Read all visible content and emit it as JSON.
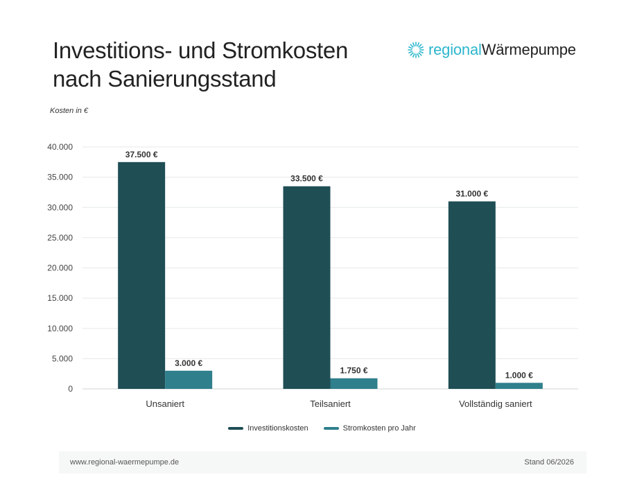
{
  "header": {
    "title_line1": "Investitions- und Stromkosten",
    "title_line2": "nach Sanierungsstand"
  },
  "logo": {
    "icon": "sun-burst-icon",
    "text_accent": "regional",
    "text_main": "Wärmepumpe",
    "accent_color": "#2cb6cd"
  },
  "footer": {
    "url": "www.regional-waermepumpe.de",
    "date": "Stand 06/2026"
  },
  "chart_data": {
    "type": "bar",
    "title": "Investitions- und Stromkosten nach Sanierungsstand",
    "unit_label": "Kosten in €",
    "categories": [
      "Unsaniert",
      "Teilsaniert",
      "Vollständig saniert"
    ],
    "series": [
      {
        "name": "Investitionskosten",
        "color": "#1f4e55",
        "values": [
          37500,
          33500,
          31000
        ],
        "labels": [
          "37.500 €",
          "33.500 €",
          "31.000 €"
        ]
      },
      {
        "name": "Stromkosten pro Jahr",
        "color": "#2f7f8c",
        "values": [
          3000,
          1750,
          1000
        ],
        "labels": [
          "3.000 €",
          "1.750 €",
          "1.000 €"
        ]
      }
    ],
    "ylim": [
      0,
      40000
    ],
    "yticks": [
      0,
      5000,
      10000,
      15000,
      20000,
      25000,
      30000,
      35000,
      40000
    ],
    "ytick_labels": [
      "0",
      "5.000",
      "10.000",
      "15.000",
      "20.000",
      "25.000",
      "30.000",
      "35.000",
      "40.000"
    ],
    "grid": true,
    "legend_position": "bottom-center"
  }
}
